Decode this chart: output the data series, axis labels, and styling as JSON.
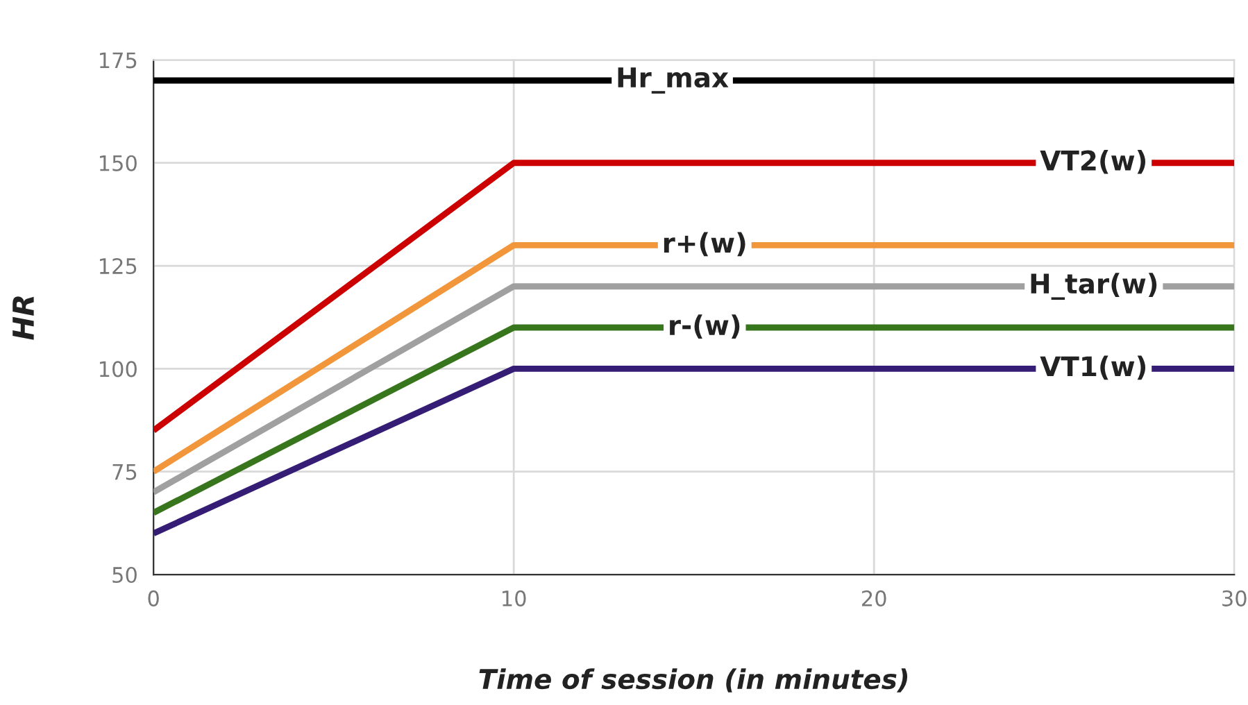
{
  "chart_data": {
    "type": "line",
    "xlabel": "Time of session (in minutes)",
    "ylabel": "HR",
    "x": [
      0,
      10,
      30
    ],
    "series": [
      {
        "name": "Hr_max",
        "color": "#000000",
        "values": [
          170,
          170,
          170
        ]
      },
      {
        "name": "VT2(w)",
        "color": "#cc0000",
        "values": [
          85,
          150,
          150
        ]
      },
      {
        "name": "r+(w)",
        "color": "#f1963b",
        "values": [
          75,
          130,
          130
        ]
      },
      {
        "name": "H_tar(w)",
        "color": "#a0a0a0",
        "values": [
          70,
          120,
          120
        ]
      },
      {
        "name": "r-(w)",
        "color": "#38761d",
        "values": [
          65,
          110,
          110
        ]
      },
      {
        "name": "VT1(w)",
        "color": "#351c75",
        "values": [
          60,
          100,
          100
        ]
      }
    ],
    "xlim": [
      0,
      30
    ],
    "xticks": [
      0,
      10,
      20,
      30
    ],
    "ylim": [
      50,
      175
    ],
    "yticks": [
      50,
      75,
      100,
      125,
      150,
      175
    ],
    "grid": true,
    "line_style": "solid",
    "marker": "none",
    "legend": false
  }
}
